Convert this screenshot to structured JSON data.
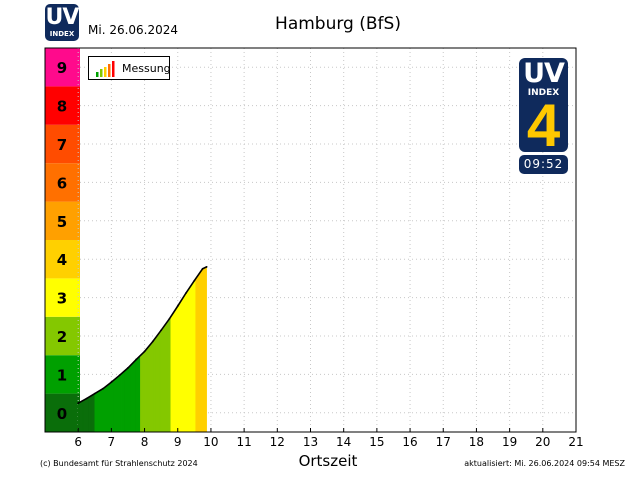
{
  "logo": {
    "text": "UV",
    "subtext": "INDEX"
  },
  "date_label": "Mi. 26.06.2024",
  "title": "Hamburg (BfS)",
  "legend": {
    "label": "Messung"
  },
  "current": {
    "text": "UV",
    "subtext": "INDEX",
    "value": "4",
    "time": "09:52"
  },
  "x_title": "Ortszeit",
  "copyright": "(c) Bundesamt für Strahlenschutz 2024",
  "updated": "aktualisiert: Mi. 26.06.2024  09:54  MESZ",
  "colors": {
    "logo_bg": "#0f2a5c",
    "badge_value": "#ffc800",
    "uv_levels": [
      "#0a6e0a",
      "#00a000",
      "#84c800",
      "#ffff00",
      "#ffd000",
      "#ffa000",
      "#ff7000",
      "#ff4c00",
      "#ff0000",
      "#ff0a8c"
    ]
  },
  "chart_data": {
    "type": "area",
    "x_ticks": [
      "6",
      "7",
      "8",
      "9",
      "10",
      "11",
      "12",
      "13",
      "14",
      "15",
      "16",
      "17",
      "18",
      "19",
      "20",
      "21"
    ],
    "y_ticks": [
      "0",
      "1",
      "2",
      "3",
      "4",
      "5",
      "6",
      "7",
      "8",
      "9"
    ],
    "xlim": [
      5,
      21
    ],
    "ylim": [
      -0.5,
      9.5
    ],
    "grid": true,
    "legend_position": "top-left",
    "series": [
      {
        "name": "Messung",
        "x": [
          6.0,
          6.25,
          6.5,
          6.75,
          7.0,
          7.25,
          7.5,
          7.75,
          8.0,
          8.25,
          8.5,
          8.75,
          9.0,
          9.25,
          9.5,
          9.75,
          9.87
        ],
        "y": [
          0.25,
          0.37,
          0.5,
          0.63,
          0.8,
          0.98,
          1.17,
          1.39,
          1.6,
          1.86,
          2.15,
          2.45,
          2.78,
          3.12,
          3.44,
          3.75,
          3.8
        ]
      }
    ]
  }
}
